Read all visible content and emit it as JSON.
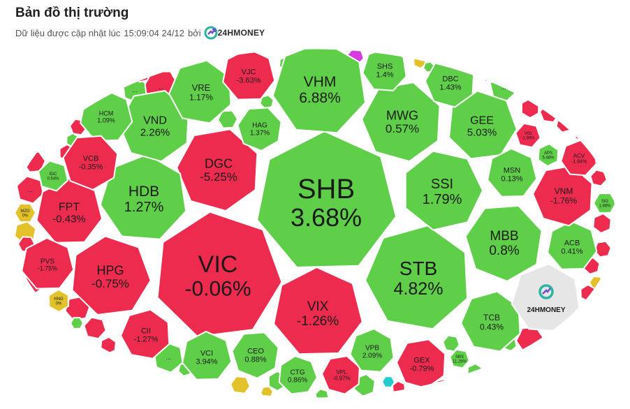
{
  "header": {
    "title": "Bản đồ thị trường",
    "update_prefix": "Dữ liệu được cập nhật lúc",
    "update_time": "15:09:04 24/12",
    "by_label": "bởi",
    "brand": "24HMONEY"
  },
  "colors": {
    "up": "#5fcf49",
    "down": "#ec2b4e",
    "flat": "#e3c12a",
    "ceiling": "#d93ae0",
    "floor": "#22cccc",
    "brand": "#e6e6e6",
    "more": "#5fcf49"
  },
  "chart_data": {
    "type": "treemap",
    "title": "Bản đồ thị trường",
    "series": [
      {
        "ticker": "SHB",
        "change": "3.68%",
        "direction": "up"
      },
      {
        "ticker": "VIC",
        "change": "-0.06%",
        "direction": "down"
      },
      {
        "ticker": "STB",
        "change": "4.82%",
        "direction": "up"
      },
      {
        "ticker": "VHM",
        "change": "6.88%",
        "direction": "up"
      },
      {
        "ticker": "DGC",
        "change": "-5.25%",
        "direction": "down"
      },
      {
        "ticker": "HDB",
        "change": "1.27%",
        "direction": "up"
      },
      {
        "ticker": "SSI",
        "change": "1.79%",
        "direction": "up"
      },
      {
        "ticker": "MWG",
        "change": "0.57%",
        "direction": "up"
      },
      {
        "ticker": "VIX",
        "change": "-1.26%",
        "direction": "down"
      },
      {
        "ticker": "HPG",
        "change": "-0.75%",
        "direction": "down"
      },
      {
        "ticker": "MBB",
        "change": "0.8%",
        "direction": "up"
      },
      {
        "ticker": "FPT",
        "change": "-0.43%",
        "direction": "down"
      },
      {
        "ticker": "VND",
        "change": "2.26%",
        "direction": "up"
      },
      {
        "ticker": "GEE",
        "change": "5.03%",
        "direction": "up"
      },
      {
        "ticker": "VRE",
        "change": "1.17%",
        "direction": "up"
      },
      {
        "ticker": "VJC",
        "change": "-3.63%",
        "direction": "down"
      },
      {
        "ticker": "HAG",
        "change": "1.37%",
        "direction": "up"
      },
      {
        "ticker": "SHS",
        "change": "1.4%",
        "direction": "up"
      },
      {
        "ticker": "DBC",
        "change": "1.43%",
        "direction": "up"
      },
      {
        "ticker": "HCM",
        "change": "1.09%",
        "direction": "up"
      },
      {
        "ticker": "VCB",
        "change": "-0.35%",
        "direction": "down"
      },
      {
        "ticker": "IDC",
        "change": "0.54%",
        "direction": "up"
      },
      {
        "ticker": "MZG",
        "change": "0%",
        "direction": "flat"
      },
      {
        "ticker": "PVS",
        "change": "-1.75%",
        "direction": "down"
      },
      {
        "ticker": "HNG",
        "change": "0%",
        "direction": "flat"
      },
      {
        "ticker": "CII",
        "change": "-1.27%",
        "direction": "down"
      },
      {
        "ticker": "VCI",
        "change": "3.94%",
        "direction": "up"
      },
      {
        "ticker": "CEO",
        "change": "0.88%",
        "direction": "up"
      },
      {
        "ticker": "CTG",
        "change": "0.86%",
        "direction": "up"
      },
      {
        "ticker": "VPL",
        "change": "-0.97%",
        "direction": "down"
      },
      {
        "ticker": "VPB",
        "change": "2.09%",
        "direction": "up"
      },
      {
        "ticker": "GEX",
        "change": "-0.79%",
        "direction": "down"
      },
      {
        "ticker": "SBS",
        "change": "11.29%",
        "direction": "up"
      },
      {
        "ticker": "TCB",
        "change": "0.43%",
        "direction": "up"
      },
      {
        "ticker": "ACB",
        "change": "0.41%",
        "direction": "up"
      },
      {
        "ticker": "VNM",
        "change": "-1.76%",
        "direction": "down"
      },
      {
        "ticker": "MSN",
        "change": "0.13%",
        "direction": "up"
      },
      {
        "ticker": "VGI",
        "change": "-1.99%",
        "direction": "down"
      },
      {
        "ticker": "APS",
        "change": "5.48%",
        "direction": "up"
      },
      {
        "ticker": "ACV",
        "change": "-1.94%",
        "direction": "down"
      },
      {
        "ticker": "SIG",
        "change": "1.88%",
        "direction": "up"
      }
    ],
    "overflow_label": "...",
    "legend": "none",
    "grid": false
  }
}
